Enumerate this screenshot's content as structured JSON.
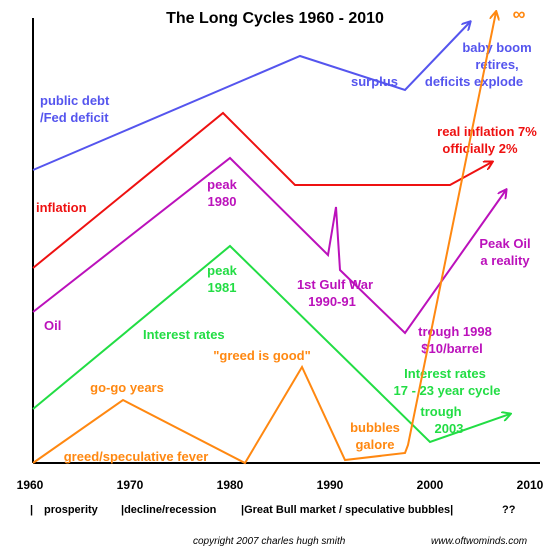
{
  "title": "The Long Cycles 1960 - 2010",
  "colors": {
    "blue": "#5555ee",
    "red": "#ee1111",
    "purple": "#bb11bb",
    "green": "#22dd44",
    "orange": "#ff8811",
    "axis": "#000000"
  },
  "axis": {
    "ticks": [
      "1960",
      "1970",
      "1980",
      "1990",
      "2000",
      "2010"
    ]
  },
  "eras": {
    "sep1": "|",
    "prosperity": "prosperity",
    "decline": "|decline/recession",
    "bull": "|Great Bull market / speculative bubbles|",
    "unknown": "??"
  },
  "labels": {
    "debt_line1": "public debt",
    "debt_line2": "/Fed deficit",
    "surplus": "surplus",
    "baby_line1": "baby boom",
    "baby_line2": "retires,",
    "baby_line3": "deficits explode",
    "infinity": "∞",
    "real_inf_line1": "real inflation 7%",
    "real_inf_line2": "officially 2%",
    "inflation": "inflation",
    "peak1980_line1": "peak",
    "peak1980_line2": "1980",
    "oil": "Oil",
    "gulf_line1": "1st Gulf War",
    "gulf_line2": "1990-91",
    "peakoil_line1": "Peak Oil",
    "peakoil_line2": "a reality",
    "trough1998_line1": "trough 1998",
    "trough1998_line2": "$10/barrel",
    "peak1981_line1": "peak",
    "peak1981_line2": "1981",
    "interest": "Interest rates",
    "greed_good": "\"greed is good\"",
    "cycle_line1": "Interest rates",
    "cycle_line2": "17 -  23 year cycle",
    "trough2003_line1": "trough",
    "trough2003_line2": "2003",
    "gogo": "go-go years",
    "bubbles_line1": "bubbles",
    "bubbles_line2": "galore",
    "greed_spec": "greed/speculative fever"
  },
  "footer": {
    "copyright": "copyright 2007 charles hugh smith",
    "website": "www.oftwominds.com"
  }
}
